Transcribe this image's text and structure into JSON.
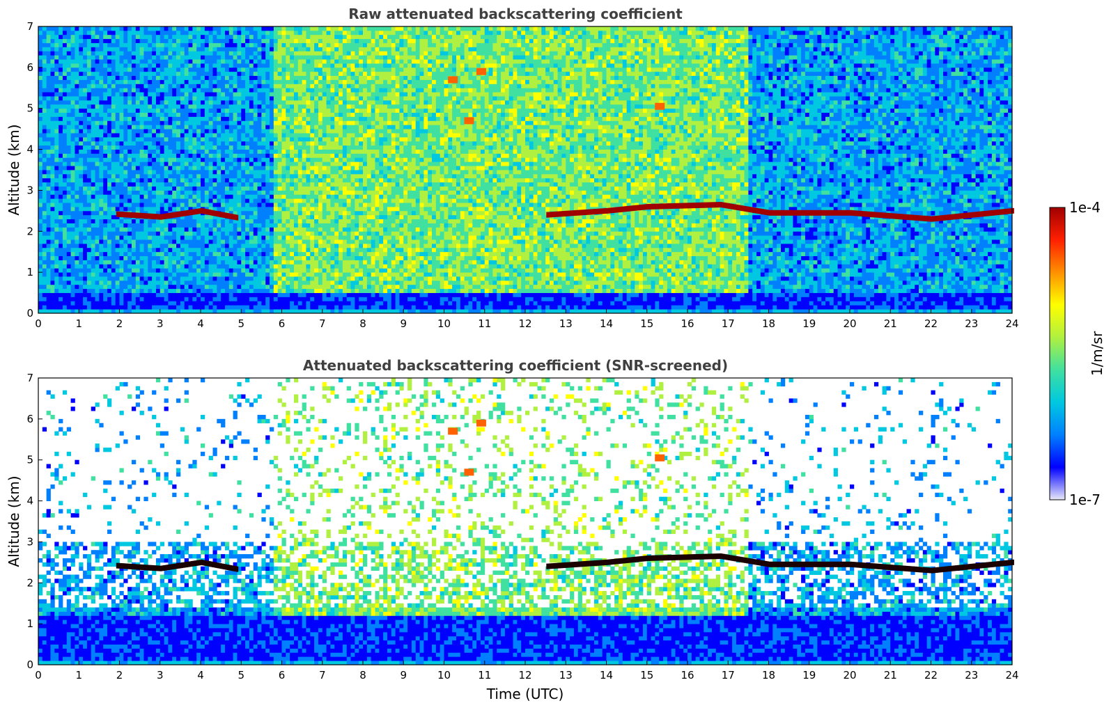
{
  "chart_data": [
    {
      "type": "heatmap",
      "title": "Raw attenuated backscattering coefficient",
      "xlabel": "",
      "ylabel": "Altitude (km)",
      "xlim": [
        0,
        24
      ],
      "ylim": [
        0,
        7
      ],
      "x_ticks": [
        0,
        1,
        2,
        3,
        4,
        5,
        6,
        7,
        8,
        9,
        10,
        11,
        12,
        13,
        14,
        15,
        16,
        17,
        18,
        19,
        20,
        21,
        22,
        23,
        24
      ],
      "y_ticks": [
        0,
        1,
        2,
        3,
        4,
        5,
        6,
        7
      ],
      "grid": false,
      "features": {
        "cloud_layer_main": [
          {
            "t": 1.9,
            "alt": 2.42
          },
          {
            "t": 3.0,
            "alt": 2.35
          },
          {
            "t": 4.0,
            "alt": 2.5
          },
          {
            "t": 4.9,
            "alt": 2.33
          },
          {
            "t": 12.5,
            "alt": 2.4
          },
          {
            "t": 14.0,
            "alt": 2.5
          },
          {
            "t": 15.0,
            "alt": 2.6
          },
          {
            "t": 16.8,
            "alt": 2.65
          },
          {
            "t": 18.0,
            "alt": 2.45
          },
          {
            "t": 20.0,
            "alt": 2.45
          },
          {
            "t": 22.0,
            "alt": 2.3
          },
          {
            "t": 24.0,
            "alt": 2.5
          }
        ],
        "boundary_layer_top_km": 0.45,
        "high_cloud_patches": [
          {
            "t": 10.2,
            "alt": 5.7
          },
          {
            "t": 10.6,
            "alt": 4.7
          },
          {
            "t": 10.9,
            "alt": 5.9
          },
          {
            "t": 15.3,
            "alt": 5.05
          }
        ]
      }
    },
    {
      "type": "heatmap",
      "title": "Attenuated backscattering coefficient (SNR-screened)",
      "xlabel": "Time (UTC)",
      "ylabel": "Altitude (km)",
      "xlim": [
        0,
        24
      ],
      "ylim": [
        0,
        7
      ],
      "x_ticks": [
        0,
        1,
        2,
        3,
        4,
        5,
        6,
        7,
        8,
        9,
        10,
        11,
        12,
        13,
        14,
        15,
        16,
        17,
        18,
        19,
        20,
        21,
        22,
        23,
        24
      ],
      "y_ticks": [
        0,
        1,
        2,
        3,
        4,
        5,
        6,
        7
      ],
      "grid": false,
      "features": {
        "cloud_layer_main_same_as_raw": true,
        "boundary_layer_top_km": 1.2,
        "screened_above_km": 3.0
      }
    }
  ],
  "colorbar": {
    "label": "1/m/sr",
    "max_label": "1e-4",
    "min_label": "1e-7",
    "scale": "log",
    "range": [
      1e-07,
      0.0001
    ],
    "colormap": [
      "#e8e8f8",
      "#0000ff",
      "#0080ff",
      "#00c8e0",
      "#40e0a0",
      "#b0f040",
      "#ffff00",
      "#ff9000",
      "#ff2000",
      "#a00000"
    ]
  }
}
